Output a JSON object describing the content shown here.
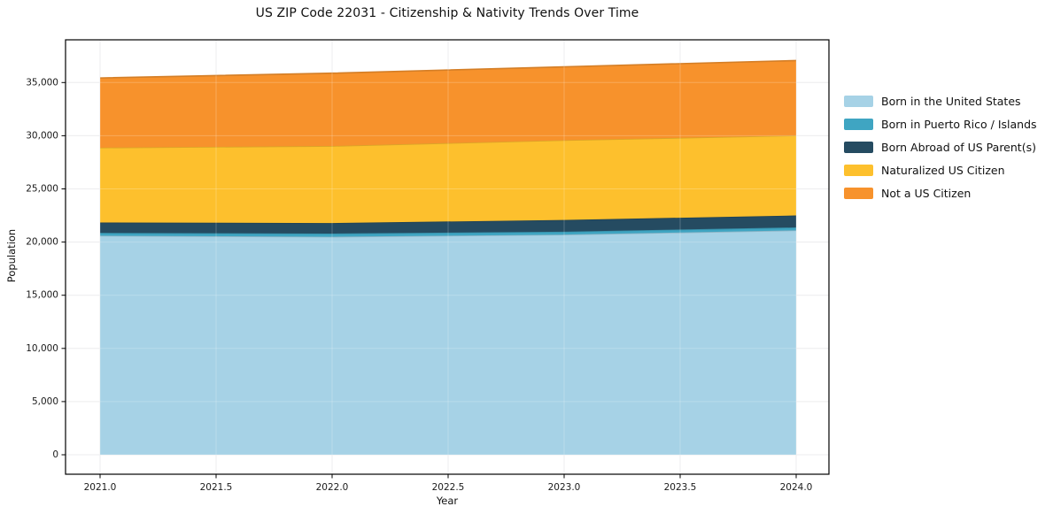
{
  "chart_data": {
    "type": "area",
    "stacked": true,
    "title": "US ZIP Code 22031 - Citizenship & Nativity Trends Over Time",
    "xlabel": "Year",
    "ylabel": "Population",
    "grid": true,
    "legend_position": "right-outside",
    "x": [
      2021,
      2022,
      2023,
      2024
    ],
    "xlim": [
      2020.85,
      2024.14
    ],
    "ylim": [
      -1830,
      39000
    ],
    "x_ticks": [
      {
        "label": "2021.0",
        "v": 2021.0
      },
      {
        "label": "2021.5",
        "v": 2021.5
      },
      {
        "label": "2022.0",
        "v": 2022.0
      },
      {
        "label": "2022.5",
        "v": 2022.5
      },
      {
        "label": "2023.0",
        "v": 2023.0
      },
      {
        "label": "2023.5",
        "v": 2023.5
      },
      {
        "label": "2024.0",
        "v": 2024.0
      }
    ],
    "y_ticks": [
      {
        "label": "0",
        "v": 0
      },
      {
        "label": "5,000",
        "v": 5000
      },
      {
        "label": "10,000",
        "v": 10000
      },
      {
        "label": "15,000",
        "v": 15000
      },
      {
        "label": "20,000",
        "v": 20000
      },
      {
        "label": "25,000",
        "v": 25000
      },
      {
        "label": "30,000",
        "v": 30000
      },
      {
        "label": "35,000",
        "v": 35000
      }
    ],
    "series": [
      {
        "name": "Born in the United States",
        "color": "#a6d2e6",
        "values": [
          20600,
          20500,
          20700,
          21100
        ]
      },
      {
        "name": "Born in Puerto Rico / Islands",
        "color": "#3fa5c2",
        "values": [
          270,
          300,
          280,
          280
        ]
      },
      {
        "name": "Born Abroad of US Parent(s)",
        "color": "#254b61",
        "values": [
          970,
          990,
          1100,
          1120
        ]
      },
      {
        "name": "Naturalized US Citizen",
        "color": "#fdc02d",
        "values": [
          7040,
          7240,
          7500,
          7520
        ]
      },
      {
        "name": "Not a US Citizen",
        "color": "#f7922c",
        "values": [
          6550,
          6850,
          6900,
          7050
        ]
      }
    ]
  }
}
